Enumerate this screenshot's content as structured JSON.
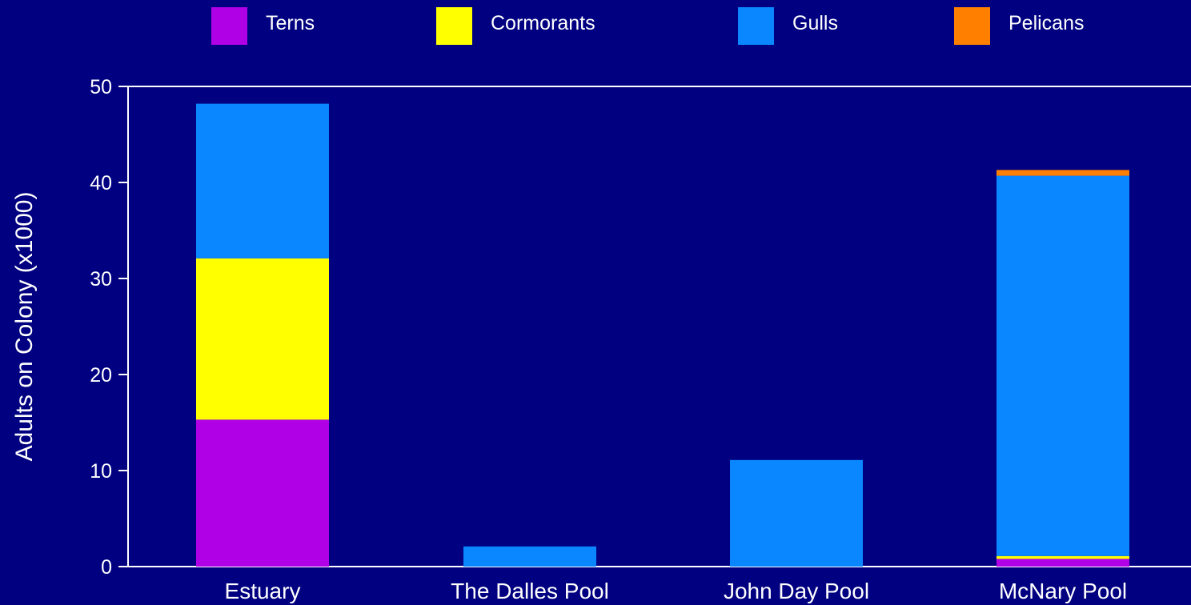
{
  "chart_data": {
    "type": "bar",
    "stacked": true,
    "categories": [
      "Estuary",
      "The Dalles Pool",
      "John Day Pool",
      "McNary Pool"
    ],
    "series": [
      {
        "name": "Terns",
        "color": "#b000e6",
        "values": [
          15.3,
          0,
          0,
          0.8
        ]
      },
      {
        "name": "Cormorants",
        "color": "#ffff00",
        "values": [
          16.8,
          0,
          0,
          0.3
        ]
      },
      {
        "name": "Gulls",
        "color": "#0a86ff",
        "values": [
          16.1,
          2.1,
          11.1,
          39.6
        ]
      },
      {
        "name": "Pelicans",
        "color": "#ff8000",
        "values": [
          0,
          0,
          0,
          0.6
        ]
      }
    ],
    "title": "",
    "xlabel": "",
    "ylabel": "Adults on Colony (x1000)",
    "ylim": [
      0,
      50
    ],
    "yticks": [
      0,
      10,
      20,
      30,
      40,
      50
    ],
    "grid": false,
    "legend_position": "top"
  }
}
